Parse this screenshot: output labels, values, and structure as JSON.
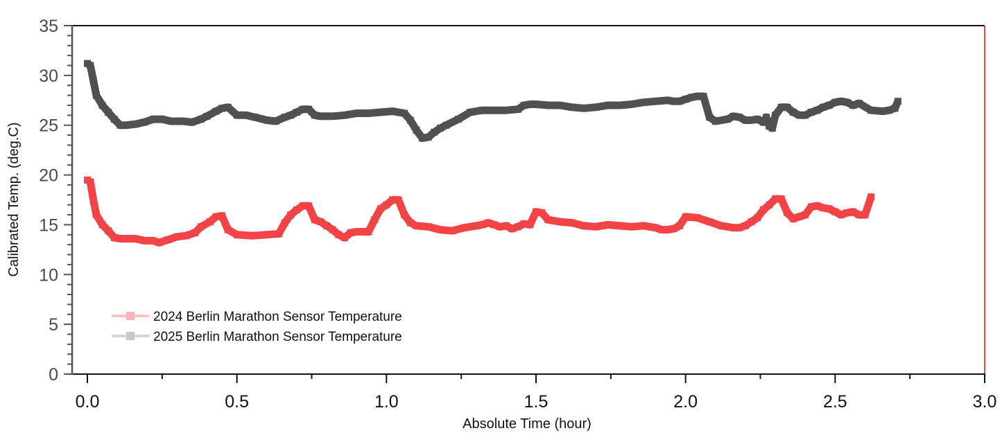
{
  "chart_data": {
    "type": "line",
    "title": "",
    "xlabel": "Absolute Time (hour)",
    "ylabel": "Calibrated Temp. (deg.C)",
    "xlim": [
      -0.05,
      3.0
    ],
    "ylim": [
      0,
      35
    ],
    "x_ticks": [
      "0.0",
      "0.5",
      "1.0",
      "1.5",
      "2.0",
      "2.5",
      "3.0"
    ],
    "x_tick_values": [
      0,
      0.5,
      1.0,
      1.5,
      2.0,
      2.5,
      3.0
    ],
    "y_ticks": [
      "0",
      "5",
      "10",
      "15",
      "20",
      "25",
      "30",
      "35"
    ],
    "y_tick_values": [
      0,
      5,
      10,
      15,
      20,
      25,
      30,
      35
    ],
    "grid": false,
    "legend_position": "bottom-left",
    "series": [
      {
        "name": "2024 Berlin Marathon Sensor Temperature",
        "color": "#f24346",
        "legend_color": "#f9b6b8",
        "x": [
          0.0,
          0.01,
          0.02,
          0.03,
          0.05,
          0.07,
          0.09,
          0.11,
          0.13,
          0.16,
          0.19,
          0.22,
          0.24,
          0.27,
          0.3,
          0.33,
          0.36,
          0.38,
          0.41,
          0.43,
          0.45,
          0.47,
          0.5,
          0.55,
          0.6,
          0.64,
          0.66,
          0.68,
          0.7,
          0.72,
          0.74,
          0.76,
          0.78,
          0.8,
          0.82,
          0.84,
          0.86,
          0.88,
          0.9,
          0.94,
          0.96,
          0.98,
          1.0,
          1.02,
          1.04,
          1.06,
          1.08,
          1.1,
          1.14,
          1.18,
          1.22,
          1.26,
          1.3,
          1.32,
          1.34,
          1.36,
          1.38,
          1.4,
          1.42,
          1.44,
          1.46,
          1.48,
          1.5,
          1.52,
          1.54,
          1.58,
          1.62,
          1.66,
          1.7,
          1.74,
          1.78,
          1.82,
          1.86,
          1.9,
          1.92,
          1.94,
          1.96,
          1.98,
          2.0,
          2.04,
          2.08,
          2.12,
          2.16,
          2.18,
          2.2,
          2.22,
          2.24,
          2.26,
          2.28,
          2.3,
          2.32,
          2.34,
          2.36,
          2.38,
          2.4,
          2.42,
          2.44,
          2.46,
          2.48,
          2.5,
          2.52,
          2.54,
          2.56,
          2.58,
          2.6,
          2.62
        ],
        "y": [
          19.5,
          19.3,
          17.5,
          16.0,
          15.0,
          14.4,
          13.7,
          13.6,
          13.6,
          13.6,
          13.4,
          13.4,
          13.2,
          13.5,
          13.8,
          13.9,
          14.2,
          14.8,
          15.3,
          15.8,
          15.9,
          14.5,
          14.0,
          13.9,
          14.0,
          14.1,
          15.2,
          16.0,
          16.5,
          16.9,
          16.9,
          15.5,
          15.3,
          14.9,
          14.5,
          14.0,
          13.7,
          14.2,
          14.3,
          14.3,
          15.5,
          16.6,
          17.0,
          17.5,
          17.5,
          16.0,
          15.2,
          14.9,
          14.8,
          14.5,
          14.4,
          14.7,
          14.9,
          15.0,
          15.2,
          15.0,
          14.8,
          14.9,
          14.6,
          14.8,
          15.1,
          15.0,
          16.3,
          16.2,
          15.5,
          15.3,
          15.2,
          14.9,
          14.8,
          15.0,
          14.9,
          14.8,
          14.9,
          14.7,
          14.5,
          14.5,
          14.6,
          14.9,
          15.8,
          15.7,
          15.3,
          14.9,
          14.7,
          14.7,
          14.9,
          15.3,
          15.7,
          16.5,
          17.0,
          17.6,
          17.6,
          16.2,
          15.6,
          15.8,
          16.0,
          16.8,
          16.9,
          16.7,
          16.6,
          16.3,
          16.0,
          16.2,
          16.3,
          16.0,
          16.0,
          17.8
        ]
      },
      {
        "name": "2025 Berlin Marathon Sensor Temperature",
        "color": "#505050",
        "legend_color": "#c8c8c8",
        "x": [
          0.0,
          0.01,
          0.02,
          0.03,
          0.05,
          0.07,
          0.09,
          0.11,
          0.13,
          0.16,
          0.19,
          0.22,
          0.25,
          0.28,
          0.32,
          0.35,
          0.38,
          0.4,
          0.43,
          0.45,
          0.47,
          0.5,
          0.53,
          0.56,
          0.6,
          0.63,
          0.66,
          0.68,
          0.7,
          0.72,
          0.74,
          0.76,
          0.78,
          0.82,
          0.86,
          0.9,
          0.94,
          0.98,
          1.02,
          1.06,
          1.08,
          1.1,
          1.12,
          1.14,
          1.16,
          1.18,
          1.2,
          1.24,
          1.28,
          1.32,
          1.36,
          1.4,
          1.44,
          1.46,
          1.48,
          1.5,
          1.54,
          1.58,
          1.62,
          1.66,
          1.7,
          1.74,
          1.78,
          1.82,
          1.86,
          1.9,
          1.94,
          1.96,
          1.98,
          2.0,
          2.02,
          2.04,
          2.06,
          2.08,
          2.1,
          2.14,
          2.16,
          2.18,
          2.2,
          2.22,
          2.24,
          2.26,
          2.27,
          2.28,
          2.29,
          2.3,
          2.32,
          2.34,
          2.36,
          2.38,
          2.4,
          2.42,
          2.44,
          2.46,
          2.48,
          2.5,
          2.52,
          2.54,
          2.56,
          2.58,
          2.62,
          2.66,
          2.68,
          2.7,
          2.71
        ],
        "y": [
          31.2,
          31.0,
          29.5,
          28.0,
          27.0,
          26.3,
          25.6,
          25.0,
          25.0,
          25.1,
          25.3,
          25.6,
          25.6,
          25.4,
          25.4,
          25.3,
          25.6,
          25.9,
          26.4,
          26.7,
          26.8,
          26.0,
          26.0,
          25.8,
          25.5,
          25.4,
          25.8,
          26.0,
          26.3,
          26.6,
          26.6,
          26.0,
          25.9,
          25.9,
          26.0,
          26.2,
          26.2,
          26.3,
          26.4,
          26.2,
          25.5,
          24.5,
          23.7,
          23.8,
          24.3,
          24.7,
          25.0,
          25.6,
          26.3,
          26.5,
          26.5,
          26.5,
          26.6,
          27.0,
          27.1,
          27.1,
          27.0,
          27.0,
          26.8,
          26.7,
          26.8,
          27.0,
          27.0,
          27.1,
          27.3,
          27.4,
          27.5,
          27.4,
          27.4,
          27.6,
          27.8,
          27.9,
          27.9,
          25.8,
          25.4,
          25.6,
          25.9,
          25.8,
          25.5,
          25.5,
          25.6,
          25.3,
          25.8,
          24.9,
          24.7,
          26.0,
          26.8,
          26.8,
          26.3,
          26.0,
          26.0,
          26.3,
          26.5,
          26.8,
          27.0,
          27.3,
          27.4,
          27.3,
          27.0,
          27.2,
          26.5,
          26.4,
          26.5,
          26.7,
          27.4
        ]
      }
    ]
  }
}
